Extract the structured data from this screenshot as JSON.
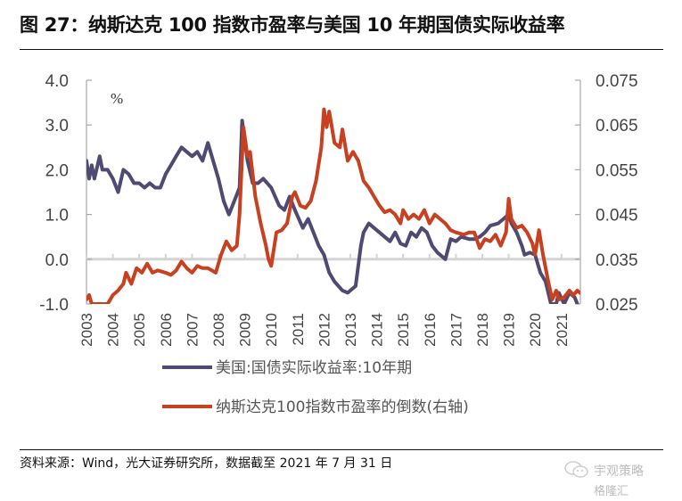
{
  "header": {
    "title": "图 27：纳斯达克 100 指数市盈率与美国 10 年期国债实际收益率"
  },
  "footer": {
    "source": "资料来源：Wind，光大证券研究所，数据截至 2021 年 7 月 31 日",
    "watermark_line1": "宇观策略",
    "watermark_line2": "格隆汇",
    "watermark_icon": "wechat-icon"
  },
  "chart_data": {
    "type": "line",
    "title": "纳斯达克 100 指数市盈率与美国 10 年期国债实际收益率",
    "unit_label": "%",
    "xlabel": "",
    "ylabel": "%",
    "xlim": [
      2003,
      2021.7
    ],
    "ylim": [
      -1.0,
      4.0
    ],
    "y2lim": [
      0.025,
      0.075
    ],
    "grid": false,
    "legend_position": "bottom",
    "x_ticks": [
      "2003",
      "2004",
      "2005",
      "2006",
      "2007",
      "2008",
      "2009",
      "2010",
      "2011",
      "2012",
      "2013",
      "2014",
      "2015",
      "2016",
      "2017",
      "2018",
      "2019",
      "2020",
      "2021"
    ],
    "y_ticks": [
      "4.0",
      "3.0",
      "2.0",
      "1.0",
      "0.0",
      "-1.0"
    ],
    "y2_ticks": [
      "0.075",
      "0.065",
      "0.055",
      "0.045",
      "0.035",
      "0.025"
    ],
    "series": [
      {
        "name": "美国:国债实际收益率:10年期",
        "axis": "left",
        "color": "#4e4a72",
        "x": [
          2003.0,
          2003.1,
          2003.2,
          2003.3,
          2003.5,
          2003.6,
          2003.8,
          2004.0,
          2004.2,
          2004.4,
          2004.6,
          2004.8,
          2005.0,
          2005.2,
          2005.4,
          2005.6,
          2005.8,
          2006.0,
          2006.2,
          2006.4,
          2006.6,
          2006.8,
          2007.0,
          2007.2,
          2007.4,
          2007.6,
          2007.8,
          2008.0,
          2008.2,
          2008.4,
          2008.6,
          2008.8,
          2008.9,
          2009.1,
          2009.3,
          2009.5,
          2009.7,
          2010.0,
          2010.3,
          2010.5,
          2010.7,
          2010.9,
          2011.2,
          2011.4,
          2011.6,
          2011.8,
          2012.0,
          2012.2,
          2012.4,
          2012.7,
          2012.9,
          2013.2,
          2013.4,
          2013.5,
          2013.7,
          2013.9,
          2014.1,
          2014.3,
          2014.5,
          2014.7,
          2014.9,
          2015.1,
          2015.3,
          2015.5,
          2015.7,
          2015.9,
          2016.1,
          2016.3,
          2016.6,
          2016.8,
          2017.0,
          2017.2,
          2017.5,
          2017.7,
          2017.9,
          2018.1,
          2018.3,
          2018.6,
          2018.8,
          2019.0,
          2019.1,
          2019.3,
          2019.5,
          2019.6,
          2019.8,
          2020.0,
          2020.2,
          2020.4,
          2020.6,
          2020.8,
          2020.9,
          2021.1,
          2021.3,
          2021.5,
          2021.6
        ],
        "values": [
          2.2,
          1.8,
          2.1,
          1.8,
          2.3,
          2.0,
          2.0,
          1.8,
          1.5,
          2.0,
          1.9,
          1.7,
          1.7,
          1.6,
          1.7,
          1.6,
          1.6,
          1.9,
          2.1,
          2.3,
          2.5,
          2.4,
          2.3,
          2.4,
          2.2,
          2.6,
          2.2,
          1.8,
          1.3,
          1.0,
          1.3,
          1.6,
          3.1,
          2.2,
          1.7,
          1.7,
          1.8,
          1.6,
          1.2,
          1.1,
          1.4,
          1.1,
          0.7,
          0.9,
          0.6,
          0.3,
          0.1,
          -0.3,
          -0.5,
          -0.7,
          -0.75,
          -0.6,
          0.3,
          0.6,
          0.8,
          0.7,
          0.6,
          0.5,
          0.4,
          0.6,
          0.35,
          0.3,
          0.6,
          0.5,
          0.7,
          0.6,
          0.3,
          0.15,
          0.0,
          0.45,
          0.4,
          0.5,
          0.45,
          0.45,
          0.5,
          0.6,
          0.75,
          0.8,
          0.9,
          1.0,
          0.8,
          0.6,
          0.3,
          0.1,
          0.15,
          0.1,
          -0.3,
          -0.5,
          -1.0,
          -1.0,
          -0.75,
          -1.0,
          -0.75,
          -0.85,
          -1.0
        ]
      },
      {
        "name": "纳斯达克100指数市盈率的倒数(右轴)",
        "axis": "right",
        "color": "#c8401f",
        "x": [
          2003.0,
          2003.1,
          2003.2,
          2003.8,
          2004.0,
          2004.2,
          2004.4,
          2004.5,
          2004.7,
          2004.9,
          2005.1,
          2005.3,
          2005.5,
          2005.7,
          2006.0,
          2006.2,
          2006.4,
          2006.6,
          2006.8,
          2007.0,
          2007.2,
          2007.4,
          2007.6,
          2007.9,
          2008.1,
          2008.3,
          2008.5,
          2008.7,
          2008.8,
          2008.95,
          2009.1,
          2009.2,
          2009.4,
          2009.6,
          2009.8,
          2009.9,
          2010.0,
          2010.2,
          2010.4,
          2010.6,
          2010.8,
          2010.9,
          2011.1,
          2011.3,
          2011.5,
          2011.7,
          2011.9,
          2012.0,
          2012.1,
          2012.2,
          2012.4,
          2012.6,
          2012.7,
          2012.9,
          2013.1,
          2013.3,
          2013.5,
          2013.7,
          2013.9,
          2014.1,
          2014.3,
          2014.5,
          2014.7,
          2014.9,
          2015.0,
          2015.2,
          2015.4,
          2015.6,
          2015.8,
          2016.0,
          2016.2,
          2016.4,
          2016.6,
          2016.8,
          2017.0,
          2017.3,
          2017.5,
          2017.7,
          2017.9,
          2018.1,
          2018.3,
          2018.5,
          2018.7,
          2018.9,
          2019.0,
          2019.1,
          2019.3,
          2019.5,
          2019.7,
          2019.9,
          2020.0,
          2020.15,
          2020.3,
          2020.5,
          2020.65,
          2020.8,
          2020.9,
          2021.1,
          2021.3,
          2021.45,
          2021.6,
          2021.7
        ],
        "values": [
          0.026,
          0.027,
          0.025,
          0.025,
          0.027,
          0.028,
          0.0295,
          0.032,
          0.0295,
          0.033,
          0.032,
          0.034,
          0.032,
          0.0325,
          0.032,
          0.0315,
          0.0325,
          0.0345,
          0.033,
          0.032,
          0.0335,
          0.033,
          0.033,
          0.032,
          0.036,
          0.039,
          0.037,
          0.038,
          0.045,
          0.0645,
          0.058,
          0.059,
          0.049,
          0.043,
          0.038,
          0.035,
          0.0335,
          0.041,
          0.0415,
          0.043,
          0.049,
          0.05,
          0.047,
          0.0465,
          0.048,
          0.0525,
          0.06,
          0.0685,
          0.0645,
          0.068,
          0.061,
          0.06,
          0.064,
          0.057,
          0.059,
          0.057,
          0.0525,
          0.051,
          0.049,
          0.047,
          0.0455,
          0.046,
          0.045,
          0.043,
          0.046,
          0.044,
          0.045,
          0.044,
          0.046,
          0.043,
          0.045,
          0.044,
          0.043,
          0.0415,
          0.041,
          0.0405,
          0.041,
          0.041,
          0.0375,
          0.0395,
          0.039,
          0.0405,
          0.038,
          0.041,
          0.0485,
          0.044,
          0.042,
          0.0425,
          0.041,
          0.0385,
          0.036,
          0.0415,
          0.036,
          0.03,
          0.026,
          0.028,
          0.026,
          0.0265,
          0.028,
          0.027,
          0.028,
          0.0275
        ]
      }
    ]
  }
}
